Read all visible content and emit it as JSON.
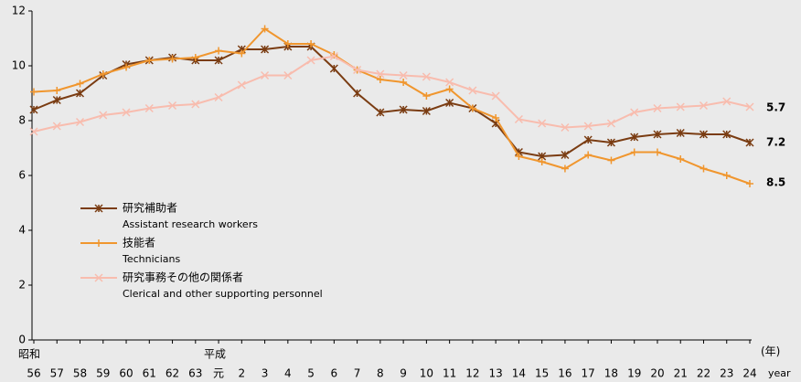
{
  "chart_data": {
    "type": "line",
    "categories": [
      "56",
      "57",
      "58",
      "59",
      "60",
      "61",
      "62",
      "63",
      "元",
      "2",
      "3",
      "4",
      "5",
      "6",
      "7",
      "8",
      "9",
      "10",
      "11",
      "12",
      "13",
      "14",
      "15",
      "16",
      "17",
      "18",
      "19",
      "20",
      "21",
      "22",
      "23",
      "24"
    ],
    "era_labels": [
      "昭和",
      "平成"
    ],
    "x_unit": "(年)",
    "x_unit_en": "year",
    "ylim": [
      0,
      12
    ],
    "yticks": [
      0,
      2,
      4,
      6,
      8,
      10,
      12
    ],
    "series": [
      {
        "name": "研究補助者",
        "name_en": "Assistant research workers",
        "color": "#7a3c12",
        "marker": "star",
        "values": [
          8.4,
          8.75,
          9.0,
          9.65,
          10.05,
          10.2,
          10.3,
          10.2,
          10.2,
          10.6,
          10.6,
          10.7,
          10.7,
          9.9,
          9.0,
          8.3,
          8.4,
          8.35,
          8.65,
          8.45,
          7.9,
          6.85,
          6.7,
          6.75,
          7.3,
          7.2,
          7.4,
          7.5,
          7.55,
          7.5,
          7.5,
          7.2
        ]
      },
      {
        "name": "技能者",
        "name_en": "Technicians",
        "color": "#f0962e",
        "marker": "plus",
        "values": [
          9.05,
          9.1,
          9.35,
          9.7,
          9.95,
          10.2,
          10.25,
          10.3,
          10.55,
          10.45,
          11.35,
          10.8,
          10.8,
          10.4,
          9.85,
          9.5,
          9.4,
          8.9,
          9.15,
          8.45,
          8.1,
          6.7,
          6.5,
          6.25,
          6.75,
          6.55,
          6.85,
          6.85,
          6.6,
          6.25,
          6.0,
          5.7
        ]
      },
      {
        "name": "研究事務その他の関係者",
        "name_en": "Clerical and other supporting personnel",
        "color": "#f8bcae",
        "marker": "cross",
        "values": [
          7.6,
          7.8,
          7.95,
          8.2,
          8.3,
          8.45,
          8.55,
          8.6,
          8.85,
          9.3,
          9.65,
          9.65,
          10.2,
          10.35,
          9.85,
          9.7,
          9.65,
          9.6,
          9.4,
          9.1,
          8.9,
          8.05,
          7.9,
          7.75,
          7.8,
          7.9,
          8.3,
          8.45,
          8.5,
          8.55,
          8.7,
          8.5
        ]
      }
    ]
  }
}
